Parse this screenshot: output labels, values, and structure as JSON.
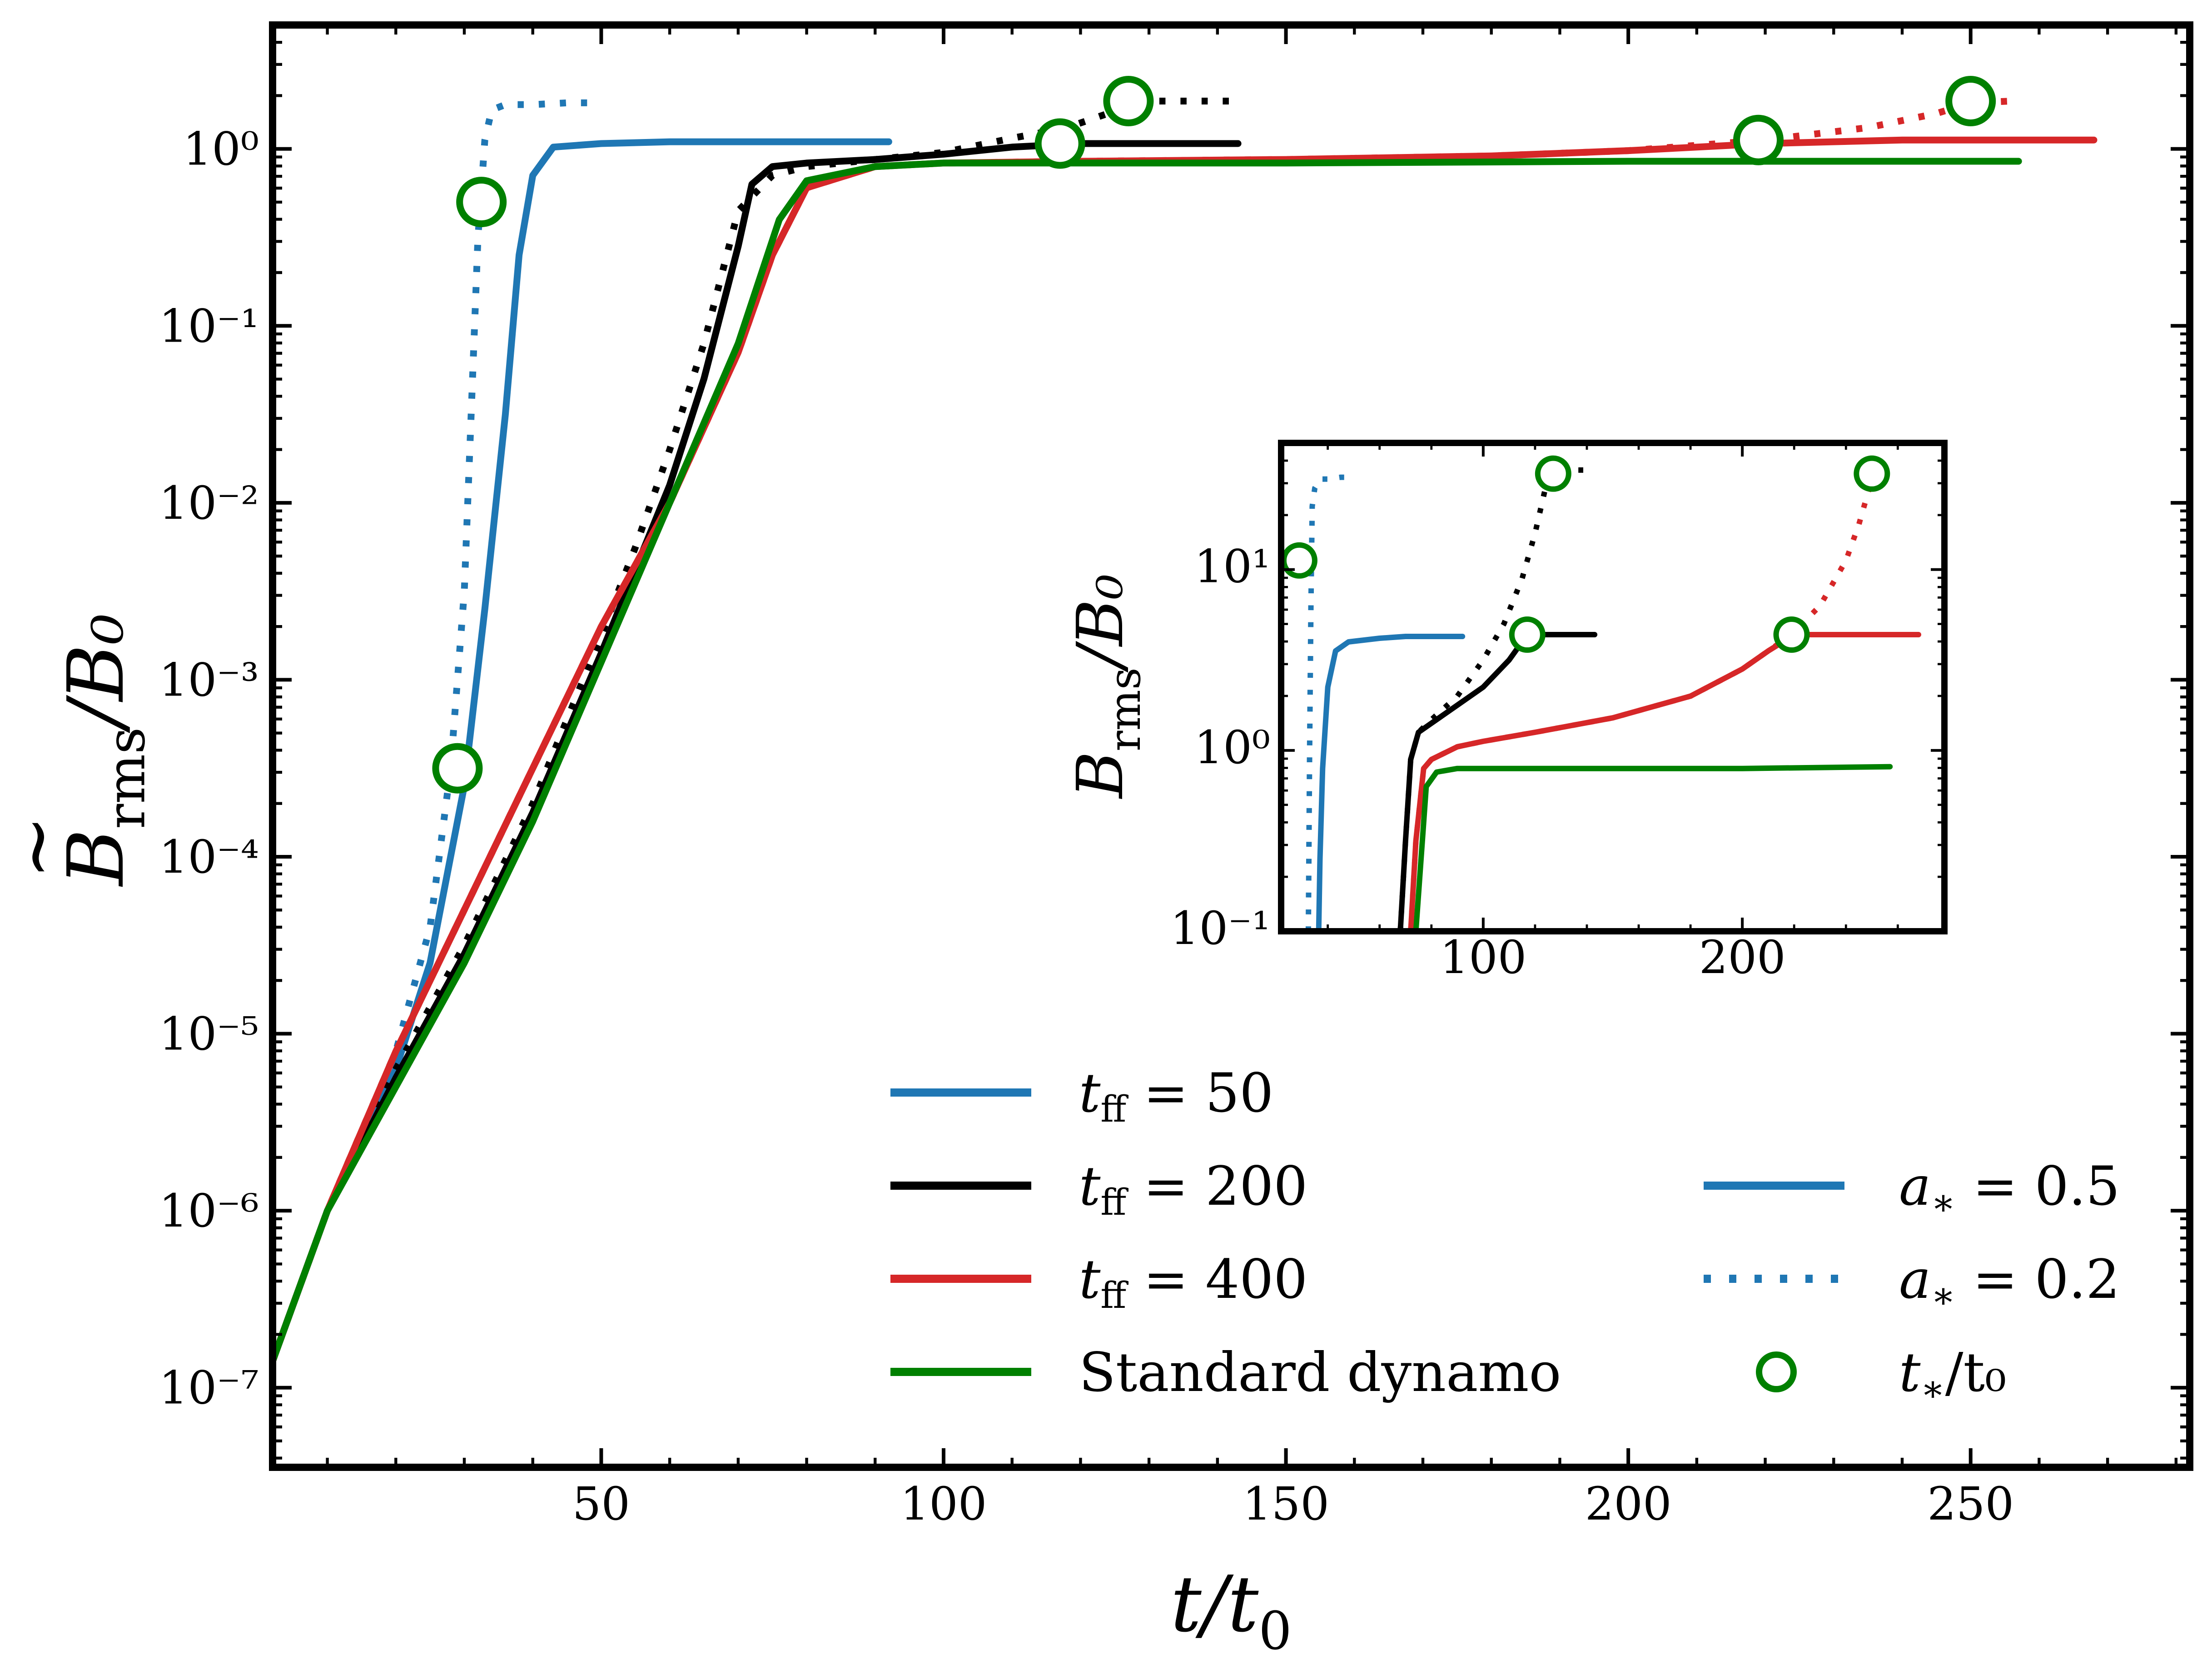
{
  "chart_data": [
    {
      "type": "line",
      "panel": "main",
      "xlabel": "t/t0",
      "ylabel": "B̃rms/B0",
      "xlim": [
        2,
        282
      ],
      "ylim_log10": [
        -7.45,
        0.7
      ],
      "yscale": "log",
      "x_ticks": [
        50,
        100,
        150,
        200,
        250
      ],
      "x_tick_labels": [
        "50",
        "100",
        "150",
        "200",
        "250"
      ],
      "y_ticks_log10": [
        -7,
        -6,
        -5,
        -4,
        -3,
        -2,
        -1,
        0
      ],
      "y_tick_labels": [
        "10⁻⁷",
        "10⁻⁶",
        "10⁻⁵",
        "10⁻⁴",
        "10⁻³",
        "10⁻²",
        "10⁻¹",
        "10⁰"
      ],
      "series": [
        {
          "name": "tff = 50",
          "style": "solid",
          "color": "#1f77b4",
          "x": [
            2,
            10,
            20,
            25,
            30,
            33,
            36,
            38,
            40,
            43,
            50,
            60,
            70,
            80,
            92
          ],
          "log10_y": [
            -6.85,
            -6.0,
            -5.2,
            -4.6,
            -3.6,
            -2.6,
            -1.5,
            -0.6,
            -0.15,
            0.01,
            0.03,
            0.04,
            0.04,
            0.04,
            0.04
          ]
        },
        {
          "name": "tff = 50, a* = 0.2",
          "style": "dotted",
          "color": "#1f77b4",
          "x": [
            2,
            10,
            20,
            25,
            28,
            30,
            31,
            32,
            33,
            34,
            36,
            40,
            45,
            50
          ],
          "log10_y": [
            -6.85,
            -6.0,
            -5.1,
            -4.4,
            -3.5,
            -2.5,
            -1.5,
            -0.5,
            0.05,
            0.22,
            0.25,
            0.25,
            0.26,
            0.26
          ]
        },
        {
          "name": "tff = 200",
          "style": "solid",
          "color": "#000000",
          "x": [
            2,
            10,
            20,
            30,
            40,
            50,
            60,
            65,
            70,
            72,
            75,
            80,
            90,
            100,
            110,
            120,
            130,
            143
          ],
          "log10_y": [
            -6.85,
            -6.0,
            -5.25,
            -4.55,
            -3.75,
            -2.85,
            -1.9,
            -1.3,
            -0.55,
            -0.2,
            -0.1,
            -0.08,
            -0.06,
            -0.03,
            0.01,
            0.03,
            0.03,
            0.03
          ]
        },
        {
          "name": "tff = 200, a* = 0.2",
          "style": "dotted",
          "color": "#000000",
          "x": [
            2,
            10,
            20,
            30,
            40,
            50,
            55,
            60,
            65,
            70,
            75,
            80,
            90,
            100,
            110,
            118,
            124,
            127,
            130,
            135,
            143
          ],
          "log10_y": [
            -6.85,
            -6.0,
            -5.2,
            -4.5,
            -3.7,
            -2.75,
            -2.25,
            -1.7,
            -1.1,
            -0.35,
            -0.15,
            -0.1,
            -0.06,
            -0.02,
            0.06,
            0.12,
            0.2,
            0.26,
            0.27,
            0.27,
            0.27
          ]
        },
        {
          "name": "tff = 400",
          "style": "solid",
          "color": "#d62728",
          "x": [
            2,
            10,
            20,
            30,
            40,
            50,
            60,
            70,
            75,
            80,
            90,
            100,
            120,
            150,
            180,
            200,
            220,
            240,
            260,
            268
          ],
          "log10_y": [
            -6.85,
            -6.0,
            -5.1,
            -4.3,
            -3.5,
            -2.7,
            -2.0,
            -1.15,
            -0.6,
            -0.22,
            -0.1,
            -0.08,
            -0.07,
            -0.06,
            -0.04,
            -0.01,
            0.03,
            0.05,
            0.05,
            0.05
          ]
        },
        {
          "name": "tff = 400, a* = 0.2",
          "style": "dotted",
          "color": "#d62728",
          "x": [
            2,
            10,
            20,
            30,
            40,
            50,
            60,
            70,
            75,
            80,
            90,
            100,
            120,
            150,
            180,
            200,
            220,
            235,
            245,
            250,
            256
          ],
          "log10_y": [
            -6.85,
            -6.0,
            -5.1,
            -4.3,
            -3.5,
            -2.7,
            -2.0,
            -1.15,
            -0.6,
            -0.22,
            -0.1,
            -0.08,
            -0.07,
            -0.06,
            -0.04,
            -0.01,
            0.05,
            0.12,
            0.2,
            0.26,
            0.27
          ]
        },
        {
          "name": "Standard dynamo",
          "style": "solid",
          "color": "#008000",
          "x": [
            2,
            10,
            20,
            30,
            40,
            50,
            60,
            70,
            76,
            80,
            90,
            100,
            150,
            200,
            257
          ],
          "log10_y": [
            -6.85,
            -6.0,
            -5.3,
            -4.6,
            -3.8,
            -2.9,
            -2.0,
            -1.1,
            -0.4,
            -0.18,
            -0.1,
            -0.08,
            -0.08,
            -0.07,
            -0.07
          ]
        }
      ],
      "markers": {
        "name": "t*/t0",
        "style": "open-circle",
        "color": "#008000",
        "x": [
          29,
          32.5,
          117,
          127,
          219,
          250
        ],
        "log10_y": [
          -3.5,
          -0.3,
          0.03,
          0.27,
          0.05,
          0.27
        ]
      },
      "legend": {
        "placement": "lower-center",
        "entries_left": [
          {
            "label_main": "t",
            "label_sub": "ff",
            "label_tail": " = 50",
            "color": "#1f77b4",
            "style": "solid"
          },
          {
            "label_main": "t",
            "label_sub": "ff",
            "label_tail": " = 200",
            "color": "#000000",
            "style": "solid"
          },
          {
            "label_main": "t",
            "label_sub": "ff",
            "label_tail": " = 400",
            "color": "#d62728",
            "style": "solid"
          },
          {
            "label_main": "Standard dynamo",
            "label_sub": "",
            "label_tail": "",
            "color": "#008000",
            "style": "solid"
          }
        ],
        "entries_right": [
          {
            "label_main": "a",
            "label_sub": "∗",
            "label_tail": " = 0.5",
            "color": "#1f77b4",
            "style": "solid"
          },
          {
            "label_main": "a",
            "label_sub": "∗",
            "label_tail": " = 0.2",
            "color": "#1f77b4",
            "style": "dotted"
          },
          {
            "label_main": "t",
            "label_sub": "∗",
            "label_tail": "/t₀",
            "color": "#008000",
            "style": "circle"
          }
        ]
      }
    },
    {
      "type": "line",
      "panel": "inset",
      "ylabel": "Brms/B0",
      "xlim": [
        22,
        278
      ],
      "ylim_log10": [
        -1,
        1.7
      ],
      "yscale": "log",
      "x_ticks": [
        100,
        200
      ],
      "x_tick_labels": [
        "100",
        "200"
      ],
      "y_ticks_log10": [
        -1,
        0,
        1
      ],
      "y_tick_labels": [
        "10⁻¹",
        "10⁰",
        "10¹"
      ],
      "series": [
        {
          "name": "tff = 50",
          "style": "solid",
          "color": "#1f77b4",
          "x": [
            36.5,
            37,
            38,
            40,
            43,
            48,
            60,
            70,
            80,
            92
          ],
          "log10_y": [
            -1.0,
            -0.6,
            -0.1,
            0.35,
            0.55,
            0.6,
            0.62,
            0.63,
            0.63,
            0.63
          ]
        },
        {
          "name": "tff = 50, a* = 0.2",
          "style": "dotted",
          "color": "#1f77b4",
          "x": [
            32.5,
            33,
            33.5,
            34,
            35,
            37,
            40,
            45,
            50
          ],
          "log10_y": [
            -1.0,
            0.0,
            0.8,
            1.35,
            1.45,
            1.5,
            1.5,
            1.51,
            1.51
          ]
        },
        {
          "name": "tff = 200",
          "style": "solid",
          "color": "#000000",
          "x": [
            68,
            70,
            72,
            75,
            80,
            90,
            100,
            110,
            115,
            120,
            130,
            143
          ],
          "log10_y": [
            -1.0,
            -0.5,
            -0.05,
            0.1,
            0.15,
            0.25,
            0.35,
            0.5,
            0.6,
            0.64,
            0.64,
            0.64
          ]
        },
        {
          "name": "tff = 200, a* = 0.2",
          "style": "dotted",
          "color": "#000000",
          "x": [
            68,
            70,
            72,
            75,
            80,
            90,
            100,
            108,
            115,
            120,
            124,
            127,
            132,
            143
          ],
          "log10_y": [
            -1.0,
            -0.5,
            -0.05,
            0.1,
            0.17,
            0.3,
            0.5,
            0.7,
            0.95,
            1.2,
            1.45,
            1.53,
            1.55,
            1.55
          ]
        },
        {
          "name": "tff = 400",
          "style": "solid",
          "color": "#d62728",
          "x": [
            72,
            74,
            77,
            80,
            90,
            100,
            120,
            150,
            180,
            200,
            210,
            219,
            225,
            240,
            268
          ],
          "log10_y": [
            -1.0,
            -0.5,
            -0.1,
            -0.05,
            0.02,
            0.05,
            0.1,
            0.18,
            0.3,
            0.45,
            0.55,
            0.63,
            0.64,
            0.64,
            0.64
          ]
        },
        {
          "name": "tff = 400, a* = 0.2",
          "style": "dotted",
          "color": "#d62728",
          "x": [
            72,
            74,
            77,
            80,
            90,
            100,
            120,
            150,
            180,
            200,
            210,
            219,
            230,
            240,
            245,
            250,
            256
          ],
          "log10_y": [
            -1.0,
            -0.5,
            -0.1,
            -0.05,
            0.02,
            0.05,
            0.1,
            0.18,
            0.3,
            0.45,
            0.55,
            0.64,
            0.8,
            1.05,
            1.25,
            1.5,
            1.56
          ]
        },
        {
          "name": "Standard dynamo",
          "style": "solid",
          "color": "#008000",
          "x": [
            74,
            76,
            78,
            82,
            90,
            100,
            150,
            200,
            257
          ],
          "log10_y": [
            -1.0,
            -0.6,
            -0.2,
            -0.12,
            -0.1,
            -0.1,
            -0.1,
            -0.1,
            -0.09
          ]
        }
      ],
      "markers": {
        "name": "t*/t0",
        "style": "open-circle",
        "color": "#008000",
        "x": [
          29,
          117,
          127,
          219,
          250
        ],
        "log10_y": [
          1.05,
          0.64,
          1.53,
          0.64,
          1.53
        ]
      }
    }
  ]
}
